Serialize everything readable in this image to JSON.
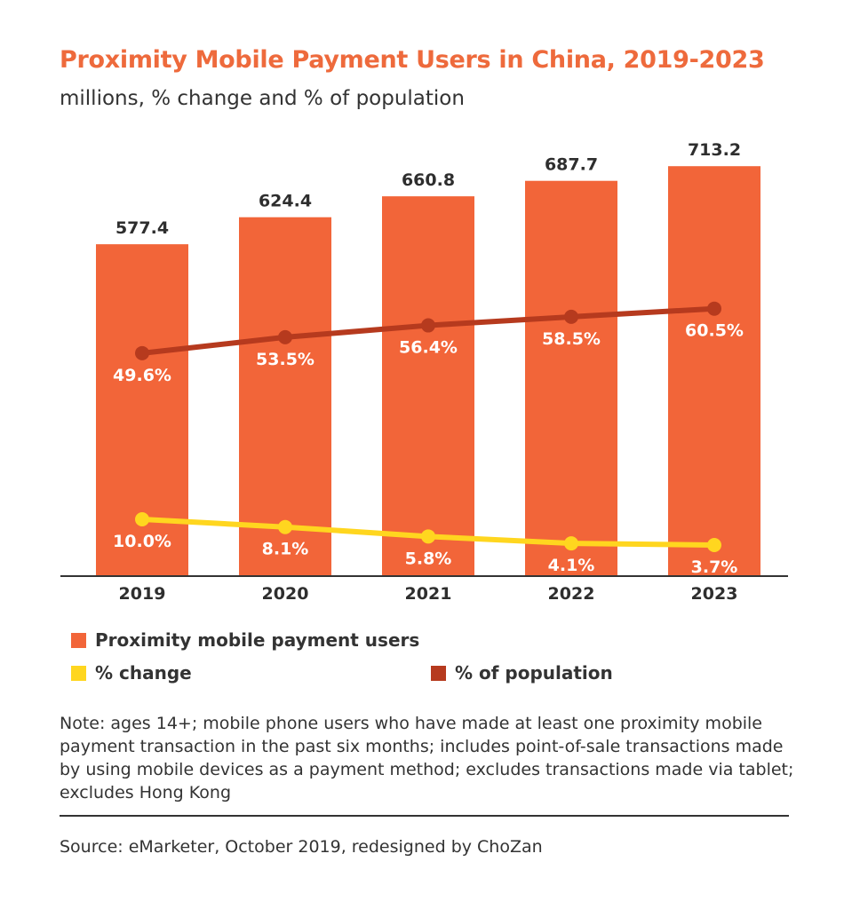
{
  "chart_data": {
    "type": "bar",
    "title": "Proximity Mobile Payment Users in China, 2019-2023",
    "subtitle": "millions, % change and % of population",
    "categories": [
      "2019",
      "2020",
      "2021",
      "2022",
      "2023"
    ],
    "ylim": [
      0,
      800
    ],
    "grid": false,
    "legend_placement": "bottom",
    "series": [
      {
        "name": "Proximity mobile payment users",
        "type": "bar",
        "color": "#f26539",
        "values": [
          577.4,
          624.4,
          660.8,
          687.7,
          713.2
        ],
        "labels": [
          "577.4",
          "624.4",
          "660.8",
          "687.7",
          "713.2"
        ]
      },
      {
        "name": "% change",
        "type": "line",
        "color": "#ffd61f",
        "values": [
          10.0,
          8.1,
          5.8,
          4.1,
          3.7
        ],
        "labels": [
          "10.0%",
          "8.1%",
          "5.8%",
          "4.1%",
          "3.7%"
        ]
      },
      {
        "name": "% of population",
        "type": "line",
        "color": "#b63a1e",
        "values": [
          49.6,
          53.5,
          56.4,
          58.5,
          60.5
        ],
        "labels": [
          "49.6%",
          "53.5%",
          "56.4%",
          "58.5%",
          "60.5%"
        ]
      }
    ]
  },
  "note": "Note: ages 14+; mobile phone users who have made at least one proximity mobile payment transaction in the past six months; includes point-of-sale transactions made by using mobile devices as a payment method; excludes transactions made via tablet; excludes Hong Kong",
  "source": "Source: eMarketer, October 2019, redesigned by ChoZan"
}
